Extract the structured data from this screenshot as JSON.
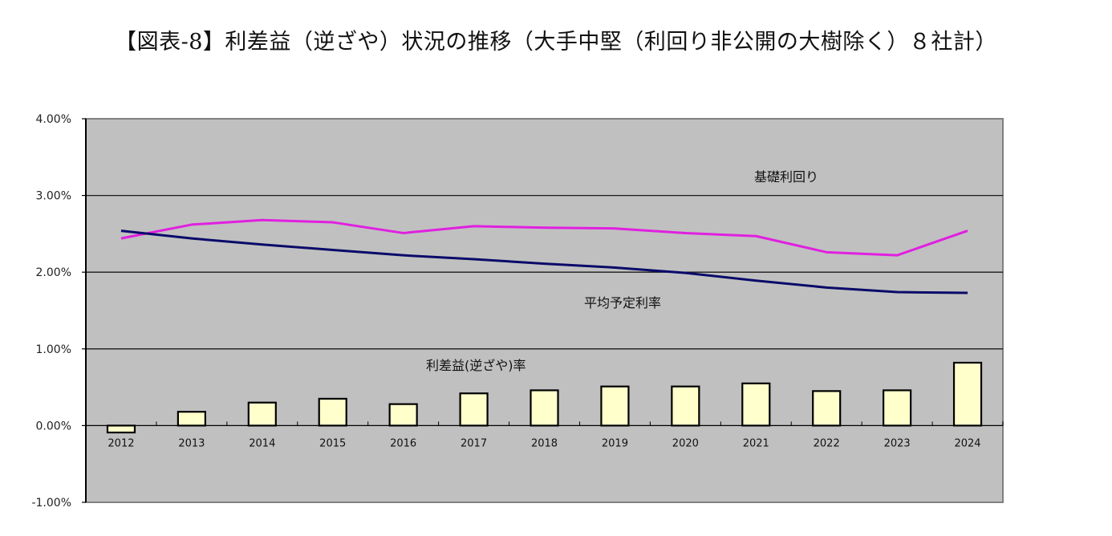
{
  "title": "【図表-8】利差益（逆ざや）状況の推移（大手中堅（利回り非公開の大樹除く）８社計）",
  "colors": {
    "plot_bg": "#c0c0c0",
    "gridline": "#1a1a1a",
    "kiso_line": "#e020e0",
    "yotei_line": "#0a0a6a",
    "bar_fill": "#ffffcc",
    "bar_stroke": "#000000"
  },
  "annotations": {
    "kiso": "基礎利回り",
    "yotei": "平均予定利率",
    "risa": "利差益(逆ざや)率"
  },
  "chart_data": {
    "type": "bar+line",
    "title": "【図表-8】利差益（逆ざや）状況の推移（大手中堅（利回り非公開の大樹除く）８社計）",
    "xlabel": "",
    "ylabel": "",
    "ylim": [
      -1.0,
      4.0
    ],
    "yticks": [
      "-1.00%",
      "0.00%",
      "1.00%",
      "2.00%",
      "3.00%",
      "4.00%"
    ],
    "ytick_values": [
      -1,
      0,
      1,
      2,
      3,
      4
    ],
    "grid": true,
    "legend": "none (inline annotations)",
    "categories": [
      "2012",
      "2013",
      "2014",
      "2015",
      "2016",
      "2017",
      "2018",
      "2019",
      "2020",
      "2021",
      "2022",
      "2023",
      "2024"
    ],
    "series": [
      {
        "name": "基礎利回り",
        "type": "line",
        "color": "#e020e0",
        "values": [
          2.44,
          2.62,
          2.68,
          2.65,
          2.51,
          2.6,
          2.58,
          2.57,
          2.51,
          2.47,
          2.26,
          2.22,
          2.54
        ]
      },
      {
        "name": "平均予定利率",
        "type": "line",
        "color": "#0a0a6a",
        "values": [
          2.54,
          2.44,
          2.36,
          2.29,
          2.22,
          2.17,
          2.11,
          2.06,
          1.99,
          1.89,
          1.8,
          1.74,
          1.73
        ]
      },
      {
        "name": "利差益(逆ざや)率",
        "type": "bar",
        "color": "#ffffcc",
        "values": [
          -0.09,
          0.18,
          0.3,
          0.35,
          0.28,
          0.42,
          0.46,
          0.51,
          0.51,
          0.55,
          0.45,
          0.46,
          0.82
        ]
      }
    ]
  }
}
